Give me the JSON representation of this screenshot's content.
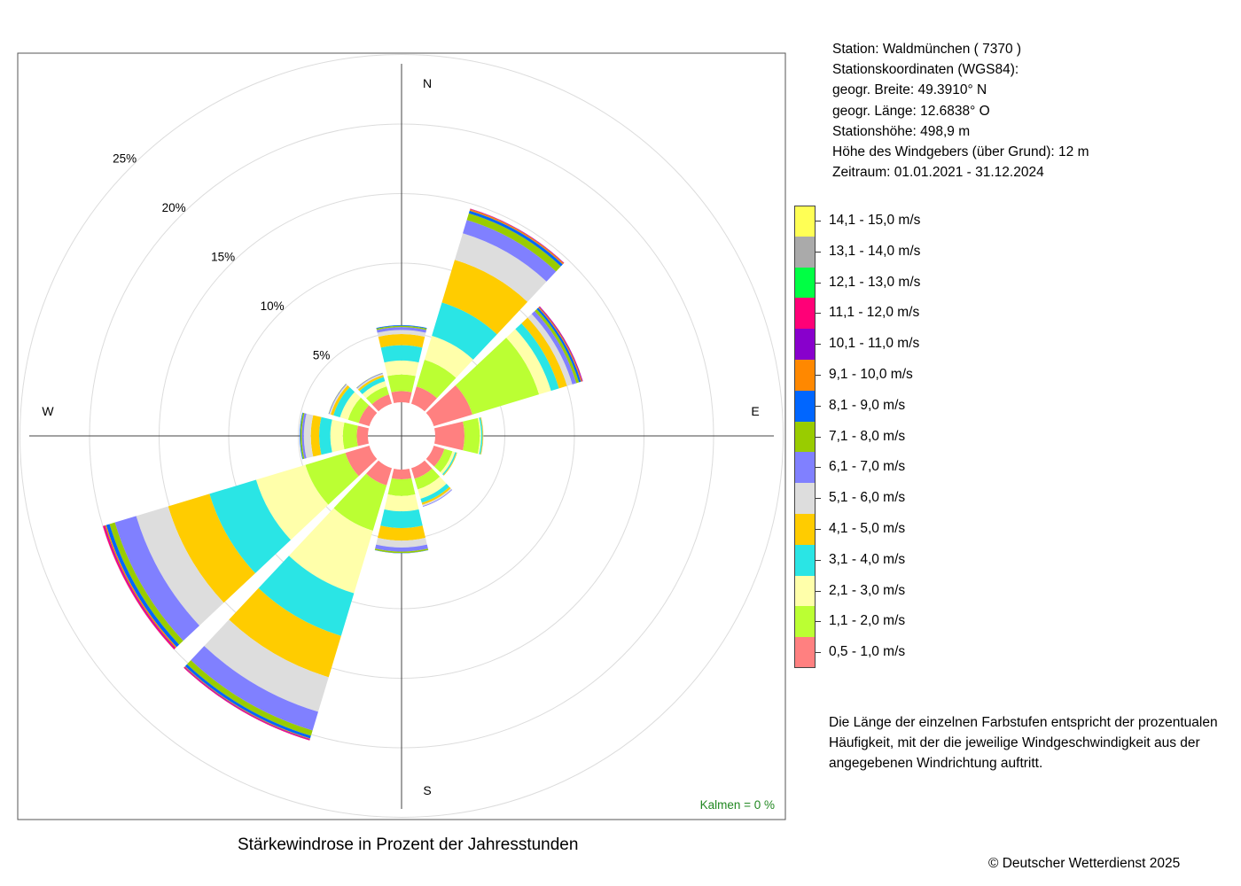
{
  "info": {
    "station": "Station:  Waldmünchen  ( 7370 )",
    "coords_heading": "Stationskoordinaten (WGS84):",
    "latitude": "geogr. Breite: 49.3910° N",
    "longitude": "geogr. Länge: 12.6838° O",
    "elevation": "Stationshöhe: 498,9 m",
    "sensor_height": "Höhe des Windgebers (über Grund): 12 m",
    "period": "Zeitraum: 01.01.2021 - 31.12.2024"
  },
  "legend": {
    "items": [
      {
        "label": "14,1 - 15,0 m/s",
        "color": "#ffff55"
      },
      {
        "label": "13,1 - 14,0 m/s",
        "color": "#aaaaaa"
      },
      {
        "label": "12,1 - 13,0 m/s",
        "color": "#00ff44"
      },
      {
        "label": "11,1 - 12,0 m/s",
        "color": "#ff0077"
      },
      {
        "label": "10,1 - 11,0 m/s",
        "color": "#8800cc"
      },
      {
        "label": "9,1 - 10,0 m/s",
        "color": "#ff8800"
      },
      {
        "label": "8,1 - 9,0 m/s",
        "color": "#0066ff"
      },
      {
        "label": "7,1 - 8,0 m/s",
        "color": "#99cc00"
      },
      {
        "label": "6,1 - 7,0 m/s",
        "color": "#8080ff"
      },
      {
        "label": "5,1 - 6,0 m/s",
        "color": "#dddddd"
      },
      {
        "label": "4,1 - 5,0 m/s",
        "color": "#ffcc00"
      },
      {
        "label": "3,1 - 4,0 m/s",
        "color": "#2ae5e5"
      },
      {
        "label": "2,1 - 3,0 m/s",
        "color": "#ffffaa"
      },
      {
        "label": "1,1 - 2,0 m/s",
        "color": "#bbff33"
      },
      {
        "label": "0,5 - 1,0 m/s",
        "color": "#ff8080"
      }
    ]
  },
  "note": "Die Länge der einzelnen Farbstufen entspricht der prozentualen Häufigkeit, mit der die jeweilige Windgeschwindigkeit aus der angegebenen Windrichtung auftritt.",
  "caption": "Stärkewindrose in Prozent der Jahresstunden",
  "copyright": "© Deutscher Wetterdienst  2025",
  "chart_data": {
    "type": "wind-rose",
    "unit": "%",
    "rings": [
      {
        "value": 5,
        "label": "5%"
      },
      {
        "value": 10,
        "label": "10%"
      },
      {
        "value": 15,
        "label": "15%"
      },
      {
        "value": 20,
        "label": "20%"
      },
      {
        "value": 25,
        "label": "25%"
      }
    ],
    "compass": {
      "north": "N",
      "east": "E",
      "south": "S",
      "west": "W"
    },
    "calm_label": "Kalmen  =  0 %",
    "calm_color": "#228822",
    "speed_classes": [
      "0,5 - 1,0 m/s",
      "1,1 - 2,0 m/s",
      "2,1 - 3,0 m/s",
      "3,1 - 4,0 m/s",
      "4,1 - 5,0 m/s",
      "5,1 - 6,0 m/s",
      "6,1 - 7,0 m/s",
      "7,1 - 8,0 m/s",
      "8,1 - 9,0 m/s",
      "9,1 - 10,0 m/s",
      "10,1 - 11,0 m/s",
      "11,1 - 12,0 m/s",
      "12,1 - 13,0 m/s",
      "13,1 - 14,0 m/s",
      "14,1 - 15,0 m/s"
    ],
    "class_colors": [
      "#ff8080",
      "#bbff33",
      "#ffffaa",
      "#2ae5e5",
      "#ffcc00",
      "#dddddd",
      "#8080ff",
      "#99cc00",
      "#0066ff",
      "#ff8800",
      "#8800cc",
      "#ff0077",
      "#00ff44",
      "#aaaaaa",
      "#ffff55"
    ],
    "sectors": [
      {
        "direction_deg": 0,
        "values": [
          0.8,
          1.2,
          1.0,
          1.1,
          0.8,
          0.3,
          0.2,
          0.1,
          0.05,
          0,
          0,
          0,
          0,
          0,
          0
        ]
      },
      {
        "direction_deg": 30,
        "values": [
          1.3,
          2.0,
          1.8,
          2.5,
          3.2,
          2.0,
          1.0,
          0.5,
          0.2,
          0.1,
          0.03,
          0.02,
          0,
          0,
          0
        ]
      },
      {
        "direction_deg": 60,
        "values": [
          2.9,
          5.0,
          0.9,
          0.6,
          0.6,
          0.4,
          0.3,
          0.2,
          0.15,
          0.08,
          0.05,
          0.02,
          0,
          0,
          0
        ]
      },
      {
        "direction_deg": 90,
        "values": [
          2.1,
          1.1,
          0.1,
          0.1,
          0.05,
          0.02,
          0,
          0,
          0,
          0,
          0,
          0,
          0,
          0,
          0
        ]
      },
      {
        "direction_deg": 120,
        "values": [
          0.8,
          0.6,
          0.2,
          0.1,
          0.05,
          0,
          0,
          0,
          0,
          0,
          0,
          0,
          0,
          0,
          0
        ]
      },
      {
        "direction_deg": 150,
        "values": [
          0.8,
          0.8,
          0.7,
          0.3,
          0.15,
          0.1,
          0.05,
          0,
          0,
          0,
          0,
          0,
          0,
          0,
          0
        ]
      },
      {
        "direction_deg": 180,
        "values": [
          0.7,
          1.2,
          1.1,
          1.2,
          0.9,
          0.5,
          0.3,
          0.1,
          0.02,
          0,
          0,
          0,
          0,
          0,
          0
        ]
      },
      {
        "direction_deg": 210,
        "values": [
          1.3,
          3.4,
          4.7,
          3.2,
          3.1,
          2.6,
          1.4,
          0.4,
          0.2,
          0.05,
          0.05,
          0.05,
          0,
          0,
          0
        ]
      },
      {
        "direction_deg": 240,
        "values": [
          1.8,
          3.0,
          3.7,
          3.5,
          3.1,
          2.4,
          1.6,
          0.4,
          0.25,
          0.1,
          0.05,
          0.1,
          0,
          0,
          0
        ]
      },
      {
        "direction_deg": 270,
        "values": [
          0.8,
          1.0,
          0.9,
          0.8,
          0.6,
          0.5,
          0.15,
          0.1,
          0.05,
          0,
          0,
          0,
          0,
          0,
          0
        ]
      },
      {
        "direction_deg": 300,
        "values": [
          0.8,
          0.8,
          0.6,
          0.5,
          0.2,
          0.1,
          0.05,
          0.02,
          0,
          0,
          0,
          0,
          0,
          0,
          0
        ]
      },
      {
        "direction_deg": 330,
        "values": [
          0.7,
          0.6,
          0.4,
          0.3,
          0.15,
          0.1,
          0.05,
          0.02,
          0,
          0,
          0,
          0,
          0,
          0,
          0
        ]
      }
    ]
  }
}
